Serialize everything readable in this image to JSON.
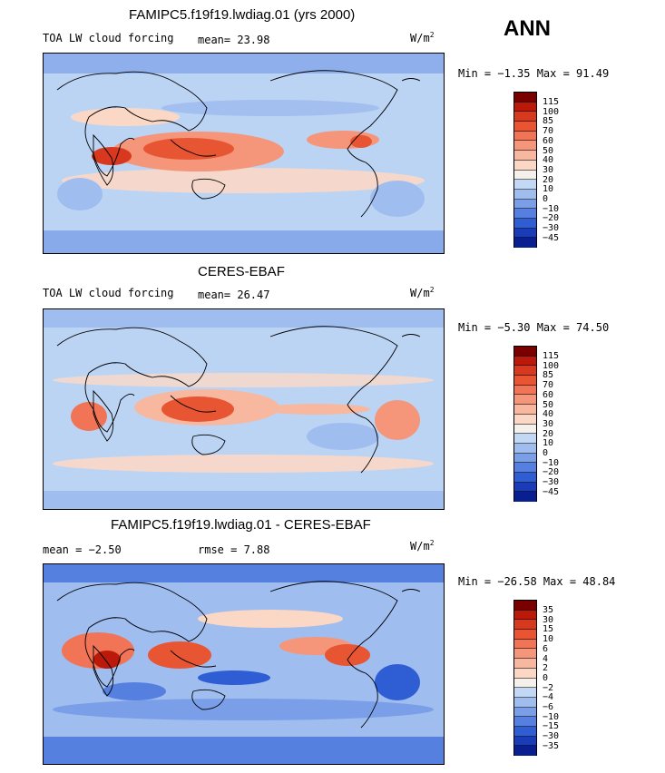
{
  "season": "ANN",
  "units": "W/m",
  "units_sup": "2",
  "panels": [
    {
      "title": "FAMIPC5.f19f19.lwdiag.01 (yrs 2000)",
      "left_label": "TOA LW cloud forcing",
      "stat1": "mean=  23.98",
      "stat2": "",
      "minmax": "Min =  −1.35 Max =  91.49",
      "levels": [
        "115",
        "100",
        "85",
        "70",
        "60",
        "50",
        "40",
        "30",
        "20",
        "10",
        "0",
        "−10",
        "−20",
        "−30",
        "−45"
      ],
      "colors": [
        "#7a0000",
        "#bb1a0a",
        "#d8381e",
        "#e85533",
        "#f07455",
        "#f5957a",
        "#f8b79f",
        "#fbd8c6",
        "#f4f0ec",
        "#c3d8f4",
        "#9fbdef",
        "#7a9fe8",
        "#5580e0",
        "#2f5dd4",
        "#1a3cb8",
        "#0a1f8f"
      ]
    },
    {
      "title": "CERES-EBAF",
      "left_label": "TOA LW cloud forcing",
      "stat1": "mean=  26.47",
      "stat2": "",
      "minmax": "Min =  −5.30 Max =  74.50",
      "levels": [
        "115",
        "100",
        "85",
        "70",
        "60",
        "50",
        "40",
        "30",
        "20",
        "10",
        "0",
        "−10",
        "−20",
        "−30",
        "−45"
      ],
      "colors": [
        "#7a0000",
        "#bb1a0a",
        "#d8381e",
        "#e85533",
        "#f07455",
        "#f5957a",
        "#f8b79f",
        "#fbd8c6",
        "#f4f0ec",
        "#c3d8f4",
        "#9fbdef",
        "#7a9fe8",
        "#5580e0",
        "#2f5dd4",
        "#1a3cb8",
        "#0a1f8f"
      ]
    },
    {
      "title": "FAMIPC5.f19f19.lwdiag.01 - CERES-EBAF",
      "left_label": "mean =   −2.50",
      "stat1": "rmse =    7.88",
      "stat2": "",
      "minmax": "Min = −26.58 Max =  48.84",
      "levels": [
        "35",
        "30",
        "15",
        "10",
        "6",
        "4",
        "2",
        "0",
        "−2",
        "−4",
        "−6",
        "−10",
        "−15",
        "−30",
        "−35"
      ],
      "colors": [
        "#7a0000",
        "#bb1a0a",
        "#d8381e",
        "#e85533",
        "#f07455",
        "#f5957a",
        "#f8b79f",
        "#fbd8c6",
        "#f4f0ec",
        "#c3d8f4",
        "#9fbdef",
        "#7a9fe8",
        "#5580e0",
        "#2f5dd4",
        "#1a3cb8",
        "#0a1f8f"
      ]
    }
  ]
}
